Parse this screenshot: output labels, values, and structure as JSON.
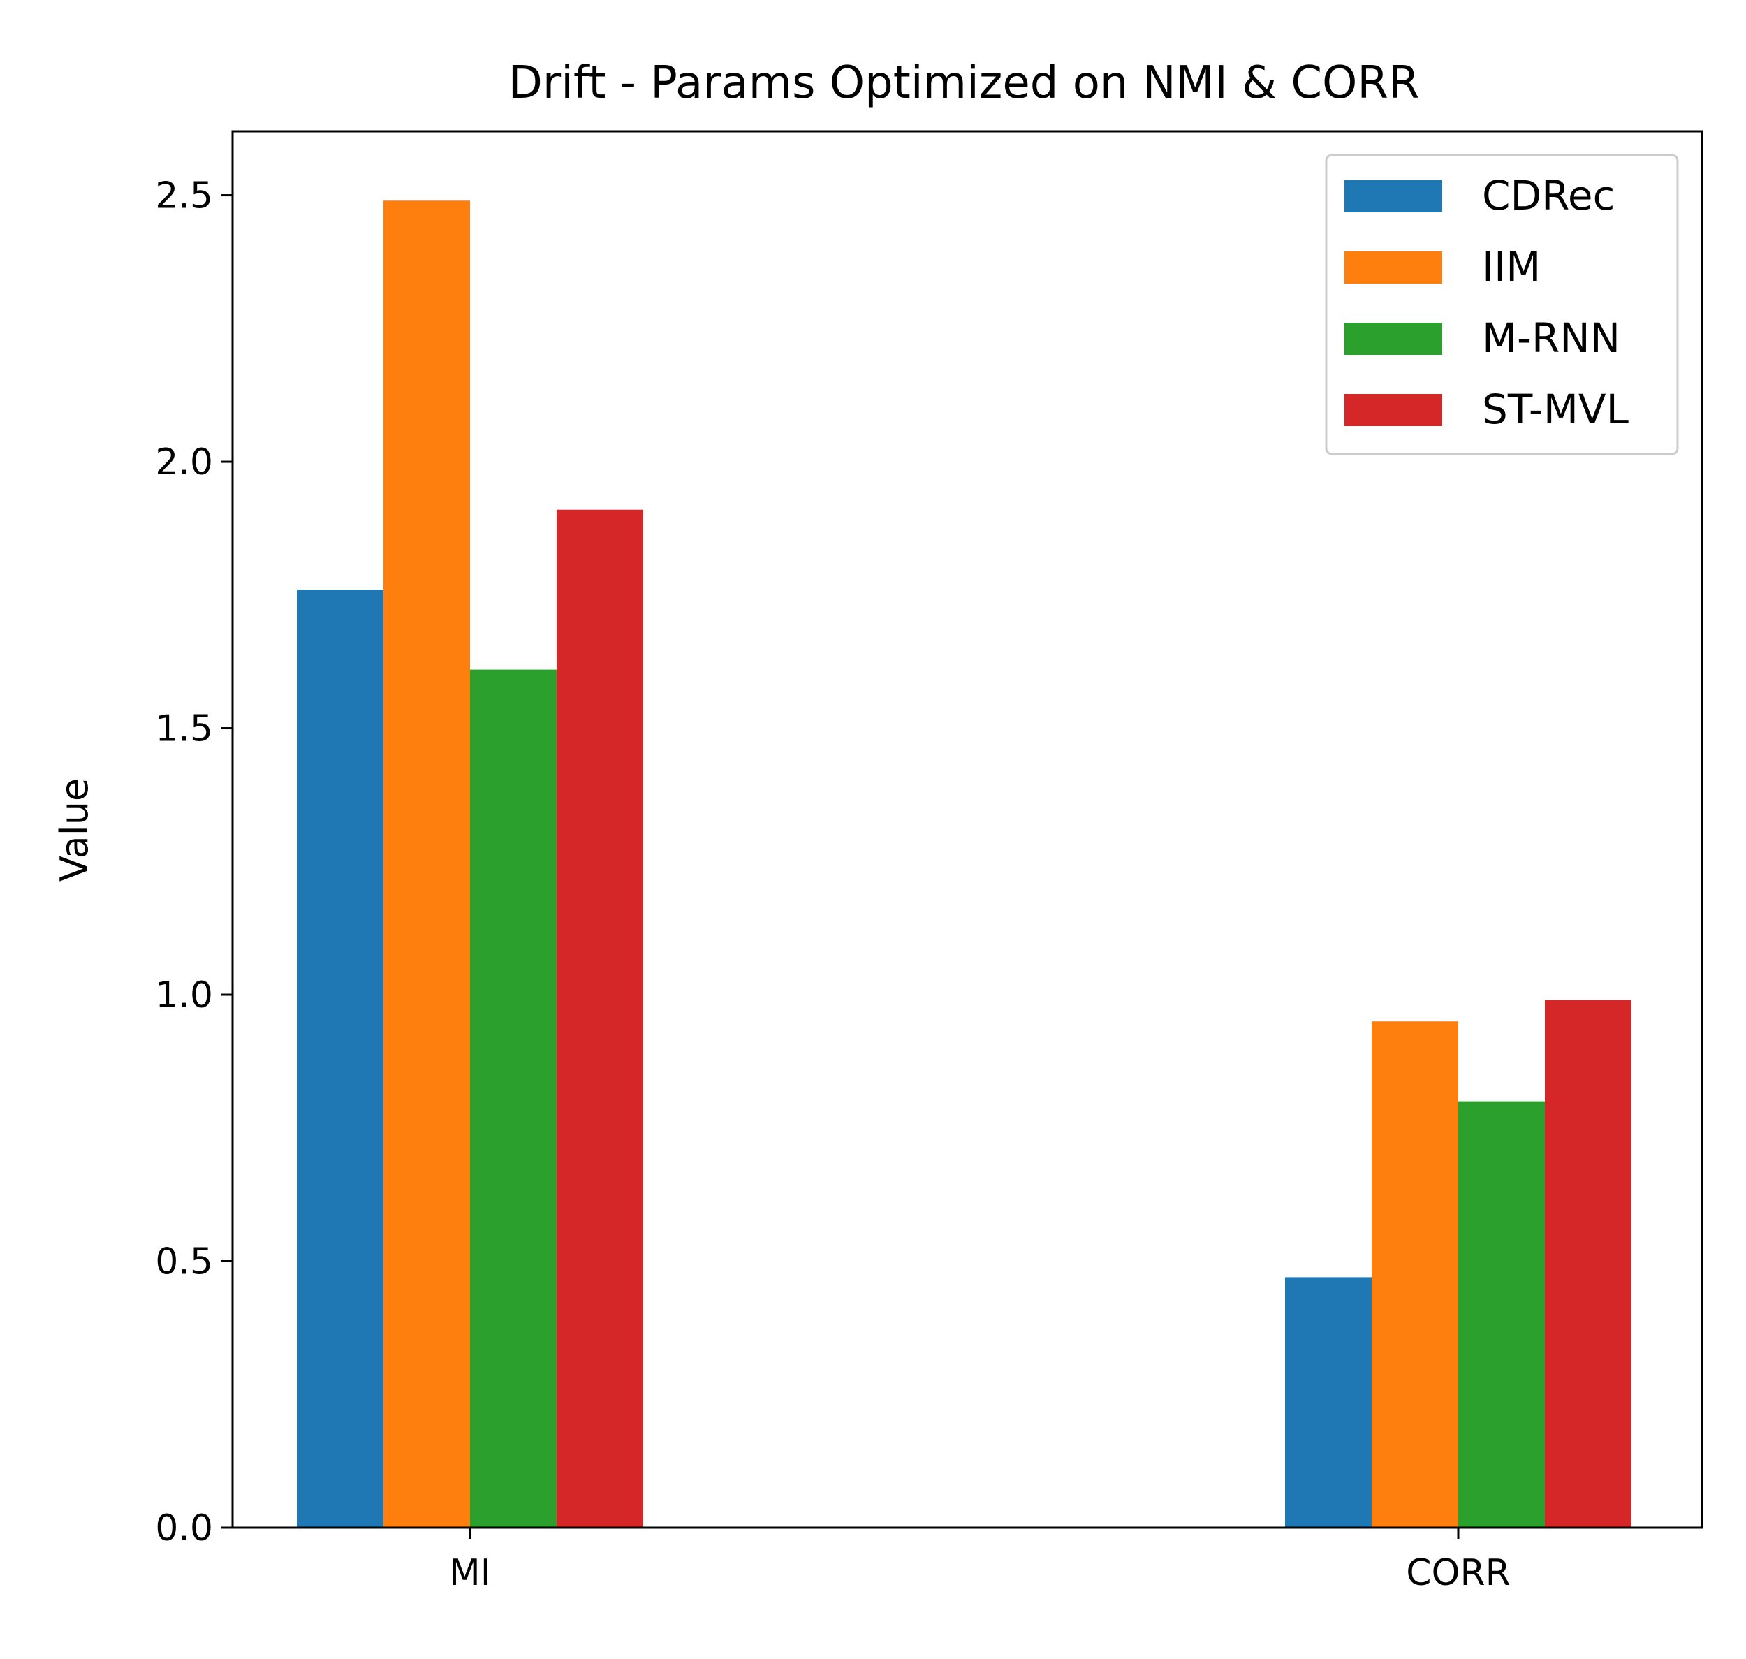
{
  "chart_data": {
    "type": "bar",
    "title": "Drift - Params Optimized on NMI & CORR",
    "xlabel": "",
    "ylabel": "Value",
    "categories": [
      "MI",
      "CORR"
    ],
    "ylim": [
      0,
      2.62
    ],
    "yticks": [
      "0.0",
      "0.5",
      "1.0",
      "1.5",
      "2.0",
      "2.5"
    ],
    "grid": false,
    "legend_position": "top-right",
    "series": [
      {
        "name": "CDRec",
        "color": "#1f77b4",
        "values": [
          1.76,
          0.47
        ]
      },
      {
        "name": "IIM",
        "color": "#ff7f0e",
        "values": [
          2.49,
          0.95
        ]
      },
      {
        "name": "M-RNN",
        "color": "#2ca02c",
        "values": [
          1.61,
          0.8
        ]
      },
      {
        "name": "ST-MVL",
        "color": "#d62728",
        "values": [
          1.91,
          0.99
        ]
      }
    ]
  }
}
